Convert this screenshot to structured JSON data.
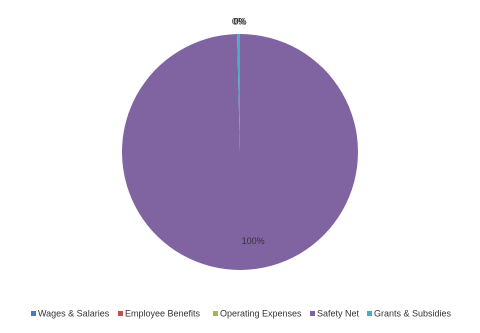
{
  "chart_data": {
    "type": "pie",
    "categories": [
      "Wages & Salaries",
      "Employee Benefits",
      "Operating Expenses",
      "Safety Net",
      "Grants & Subsidies"
    ],
    "values": [
      0,
      0,
      0,
      99.6,
      0.4
    ],
    "value_labels": [
      "0%",
      "0%",
      "0%",
      "100%",
      "0%"
    ],
    "colors": [
      "#4a7ebb",
      "#c0504d",
      "#9bbb59",
      "#8064a2",
      "#4bacc6"
    ],
    "legend": "bottom"
  }
}
